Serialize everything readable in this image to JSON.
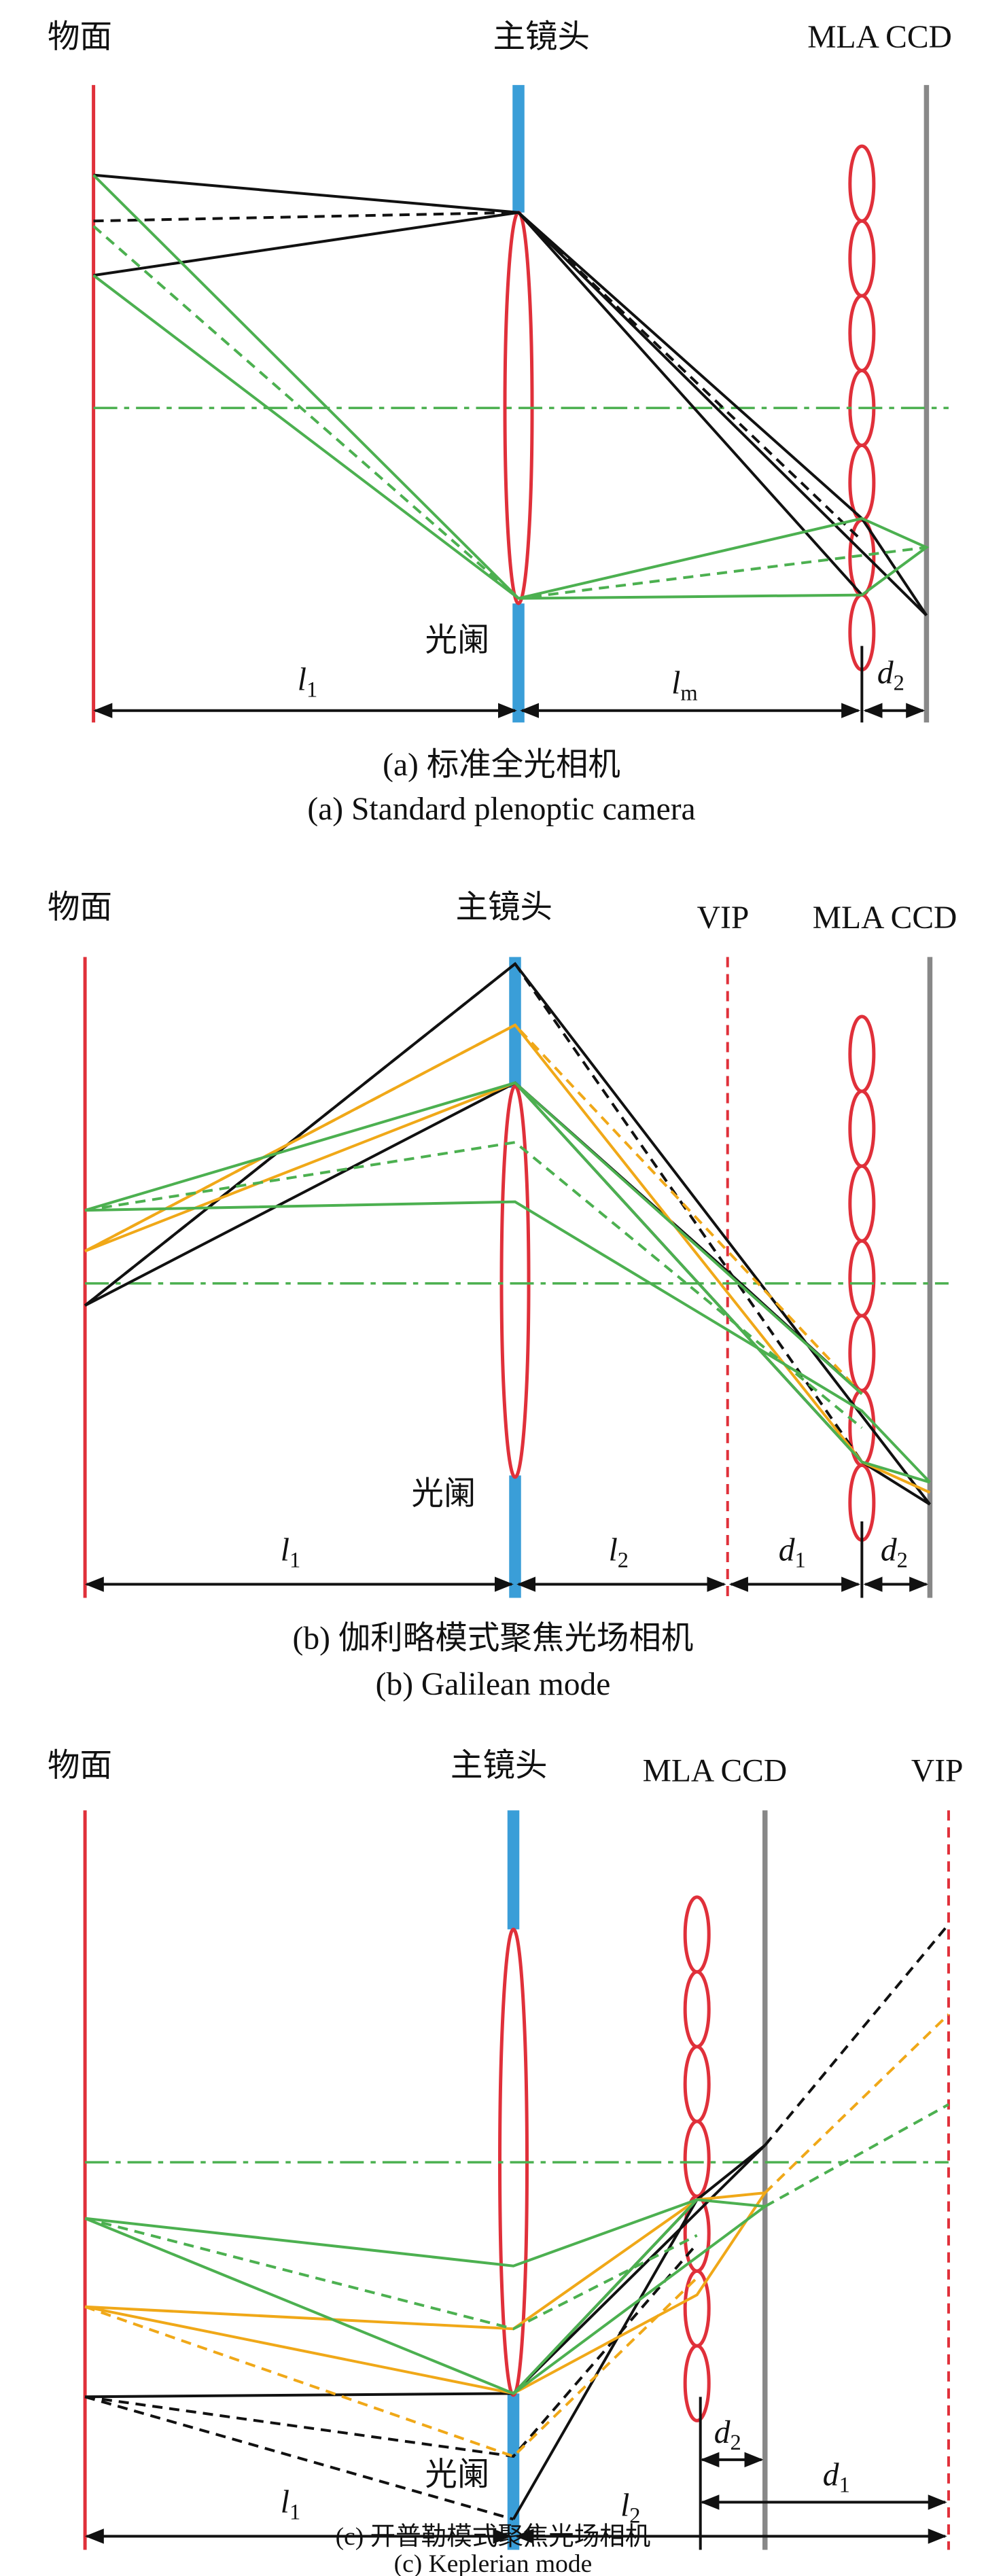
{
  "panels": [
    {
      "labels": {
        "object": "物面",
        "lens": "主镜头",
        "mla_ccd": "MLA CCD",
        "aperture": "光阑"
      },
      "dims": [
        {
          "symbol": "l",
          "sub": "1"
        },
        {
          "symbol": "l",
          "sub": "m"
        },
        {
          "symbol": "d",
          "sub": "2"
        }
      ],
      "caption_zh": "(a) 标准全光相机",
      "caption_en": "(a) Standard plenoptic camera"
    },
    {
      "labels": {
        "object": "物面",
        "lens": "主镜头",
        "vip": "VIP",
        "mla_ccd": "MLA CCD",
        "aperture": "光阑"
      },
      "dims": [
        {
          "symbol": "l",
          "sub": "1"
        },
        {
          "symbol": "l",
          "sub": "2"
        },
        {
          "symbol": "d",
          "sub": "1"
        },
        {
          "symbol": "d",
          "sub": "2"
        }
      ],
      "caption_zh": "(b) 伽利略模式聚焦光场相机",
      "caption_en": "(b) Galilean mode"
    },
    {
      "labels": {
        "object": "物面",
        "lens": "主镜头",
        "mla_ccd": "MLA CCD",
        "vip": "VIP",
        "aperture": "光阑"
      },
      "dims": [
        {
          "symbol": "l",
          "sub": "1"
        },
        {
          "symbol": "l",
          "sub": "2"
        },
        {
          "symbol": "d",
          "sub": "2"
        },
        {
          "symbol": "d",
          "sub": "1"
        }
      ],
      "caption_zh": "(c) 开普勒模式聚焦光场相机",
      "caption_en": "(c) Keplerian mode"
    }
  ]
}
